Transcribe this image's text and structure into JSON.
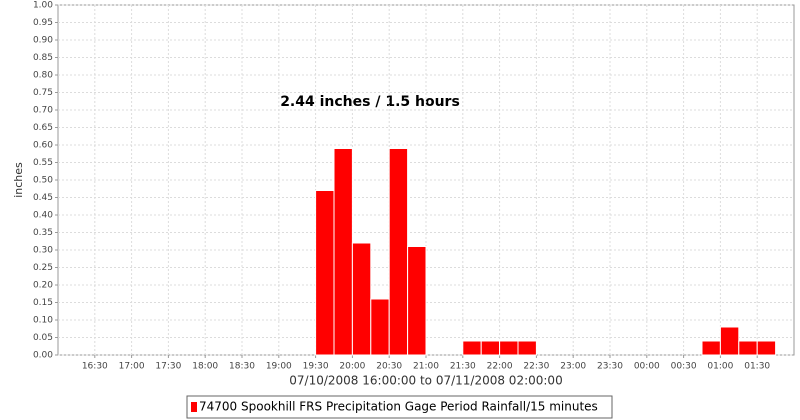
{
  "chart_data": {
    "type": "bar",
    "annotation": "2.44 inches / 1.5 hours",
    "x_label": "07/10/2008 16:00:00 to 07/11/2008 02:00:00",
    "y_label": "inches",
    "series": [
      {
        "name": "74700 Spookhill FRS Precipitation Gage Period Rainfall/15 minutes",
        "color": "#ff0000",
        "x": [
          "19:30",
          "19:45",
          "20:00",
          "20:15",
          "20:30",
          "20:45",
          "21:30",
          "21:45",
          "22:00",
          "22:15",
          "00:45",
          "01:00",
          "01:15",
          "01:30"
        ],
        "values": [
          0.47,
          0.59,
          0.32,
          0.16,
          0.59,
          0.31,
          0.04,
          0.04,
          0.04,
          0.04,
          0.04,
          0.08,
          0.04,
          0.04
        ]
      }
    ],
    "xlim": [
      "16:00",
      "02:00"
    ],
    "xticks": [
      "16:30",
      "17:00",
      "17:30",
      "18:00",
      "18:30",
      "19:00",
      "19:30",
      "20:00",
      "20:30",
      "21:00",
      "21:30",
      "22:00",
      "22:30",
      "23:00",
      "23:30",
      "00:00",
      "00:30",
      "01:00",
      "01:30"
    ],
    "ylim": [
      0,
      1
    ],
    "yticks": [
      {
        "value": 0,
        "label": "0.00"
      },
      {
        "value": 0.05,
        "label": "0.05"
      },
      {
        "value": 0.1,
        "label": "0.10"
      },
      {
        "value": 0.15,
        "label": "0.15"
      },
      {
        "value": 0.2,
        "label": "0.20"
      },
      {
        "value": 0.25,
        "label": "0.25"
      },
      {
        "value": 0.3,
        "label": "0.30"
      },
      {
        "value": 0.35,
        "label": "0.35"
      },
      {
        "value": 0.4,
        "label": "0.40"
      },
      {
        "value": 0.45,
        "label": "0.45"
      },
      {
        "value": 0.5,
        "label": "0.50"
      },
      {
        "value": 0.55,
        "label": "0.55"
      },
      {
        "value": 0.6,
        "label": "0.60"
      },
      {
        "value": 0.65,
        "label": "0.65"
      },
      {
        "value": 0.7,
        "label": "0.70"
      },
      {
        "value": 0.75,
        "label": "0.75"
      },
      {
        "value": 0.8,
        "label": "0.80"
      },
      {
        "value": 0.85,
        "label": "0.85"
      },
      {
        "value": 0.9,
        "label": "0.90"
      },
      {
        "value": 0.95,
        "label": "0.95"
      },
      {
        "value": 1,
        "label": "1.00"
      }
    ],
    "grid": true
  }
}
